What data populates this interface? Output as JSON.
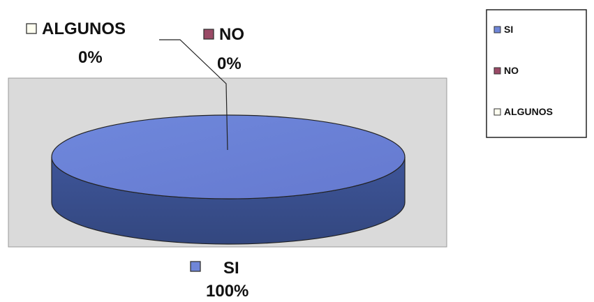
{
  "chart_data": {
    "type": "pie",
    "style": "3d",
    "title": "",
    "categories": [
      "SI",
      "NO",
      "ALGUNOS"
    ],
    "values": [
      100,
      0,
      0
    ],
    "value_labels": [
      "100%",
      "0%",
      "0%"
    ],
    "colors": [
      "#6f86d8",
      "#9a4a66",
      "#fffff0"
    ],
    "legend": {
      "position": "right",
      "entries": [
        "SI",
        "NO",
        "ALGUNOS"
      ]
    },
    "plot_area_color": "#dcdcdc"
  }
}
